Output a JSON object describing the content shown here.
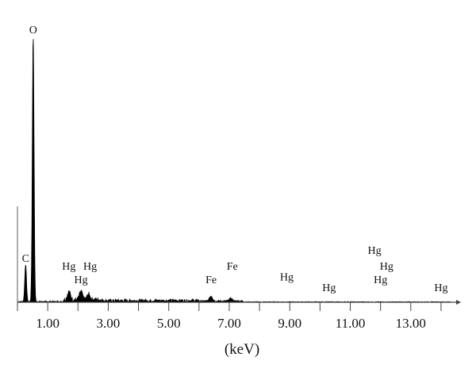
{
  "chart_data": {
    "type": "line",
    "title": "",
    "xlabel": "(keV)",
    "ylabel": "",
    "xlim": [
      0.0,
      14.5
    ],
    "ylim": [
      0,
      100
    ],
    "x_ticks": [
      0.0,
      1.0,
      2.0,
      3.0,
      4.0,
      5.0,
      6.0,
      7.0,
      8.0,
      9.0,
      10.0,
      11.0,
      12.0,
      13.0,
      14.0
    ],
    "x_tick_labels": [
      "1.00",
      "3.00",
      "5.00",
      "7.00",
      "9.00",
      "11.00",
      "13.00"
    ],
    "x_tick_label_values": [
      1.0,
      3.0,
      5.0,
      7.0,
      9.0,
      11.0,
      13.0
    ],
    "grid": false,
    "legend": "none",
    "series": [
      {
        "color": "#000000",
        "peaks": [
          {
            "x": 0.27,
            "y": 14
          },
          {
            "x": 0.52,
            "y": 100
          },
          {
            "x": 1.7,
            "y": 3
          },
          {
            "x": 2.1,
            "y": 3
          },
          {
            "x": 2.35,
            "y": 2
          },
          {
            "x": 6.4,
            "y": 2
          },
          {
            "x": 7.05,
            "y": 1
          }
        ]
      }
    ],
    "annotations": [
      {
        "text": "O",
        "x": 0.52,
        "y": 100
      },
      {
        "text": "C",
        "x": 0.27,
        "y": 14
      },
      {
        "text": "Hg",
        "x": 1.7,
        "y": 11
      },
      {
        "text": "Hg",
        "x": 2.4,
        "y": 11
      },
      {
        "text": "Hg",
        "x": 2.1,
        "y": 6
      },
      {
        "text": "Fe",
        "x": 6.4,
        "y": 6
      },
      {
        "text": "Fe",
        "x": 7.1,
        "y": 11
      },
      {
        "text": "Hg",
        "x": 8.9,
        "y": 7
      },
      {
        "text": "Hg",
        "x": 10.3,
        "y": 3
      },
      {
        "text": "Hg",
        "x": 11.8,
        "y": 17
      },
      {
        "text": "Hg",
        "x": 12.2,
        "y": 11
      },
      {
        "text": "Hg",
        "x": 12.0,
        "y": 6
      },
      {
        "text": "Hg",
        "x": 14.0,
        "y": 3
      }
    ]
  }
}
